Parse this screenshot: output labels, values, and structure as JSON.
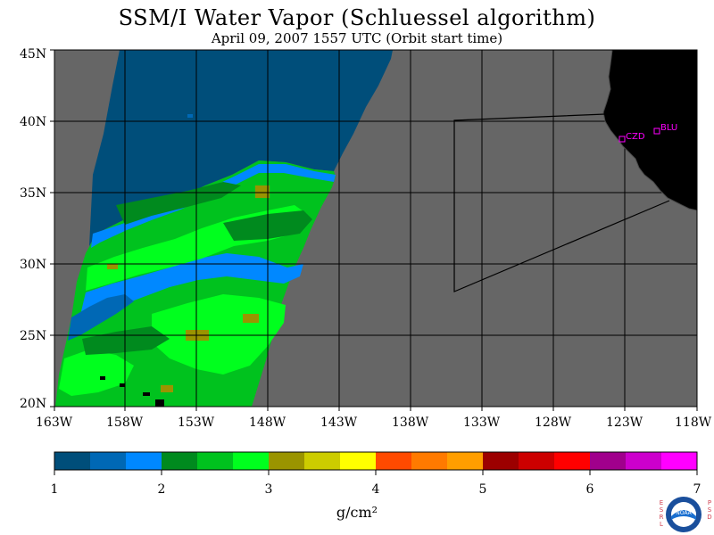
{
  "title": "SSM/I Water Vapor (Schluessel algorithm)",
  "subtitle": "April 09, 2007  1557 UTC  (Orbit start time)",
  "map": {
    "lat_labels": [
      "45N",
      "40N",
      "35N",
      "30N",
      "25N",
      "20N"
    ],
    "lon_labels": [
      "163W",
      "158W",
      "153W",
      "148W",
      "143W",
      "138W",
      "133W",
      "128W",
      "123W",
      "118W"
    ],
    "stations": [
      {
        "name": "CZD"
      },
      {
        "name": "BLU"
      }
    ],
    "colors": {
      "no_data": "#666666",
      "land": "#000000",
      "grid": "#000000",
      "station": "#ff00ff"
    }
  },
  "colorbar": {
    "tick_labels": [
      "1",
      "2",
      "3",
      "4",
      "5",
      "6",
      "7"
    ],
    "units": "g/cm²",
    "colors": [
      "#004e7a",
      "#0068b5",
      "#0088ff",
      "#008a1e",
      "#00c21e",
      "#00ff1e",
      "#9a9400",
      "#cccc00",
      "#ffff00",
      "#ff4a00",
      "#ff7a00",
      "#ff9e00",
      "#9c0000",
      "#cc0000",
      "#ff0000",
      "#a0008c",
      "#cc00cc",
      "#ff00ff"
    ]
  },
  "logo": {
    "text": "NOAA",
    "left_vertical": "ESRL",
    "right_vertical": "PSD"
  }
}
